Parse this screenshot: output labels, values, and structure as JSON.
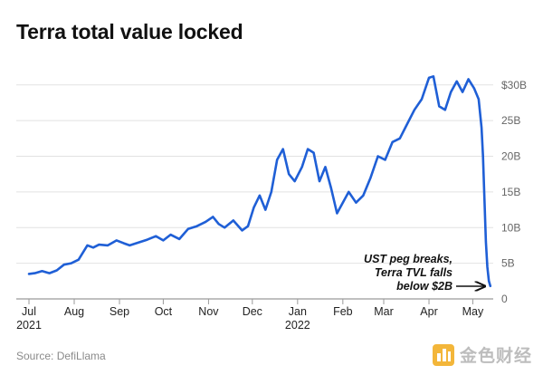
{
  "chart_data": {
    "type": "line",
    "title": "Terra total value locked",
    "source": "Source: DefiLlama",
    "y_unit": "billion USD",
    "ylim": [
      0,
      32
    ],
    "y_ticks": [
      {
        "value": 0,
        "label": "0"
      },
      {
        "value": 5,
        "label": "5B"
      },
      {
        "value": 10,
        "label": "10B"
      },
      {
        "value": 15,
        "label": "15B"
      },
      {
        "value": 20,
        "label": "20B"
      },
      {
        "value": 25,
        "label": "25B"
      },
      {
        "value": 30,
        "label": "$30B"
      }
    ],
    "xlim": [
      "2021-07-01",
      "2022-05-15"
    ],
    "x_ticks": [
      {
        "date": "2021-07-01",
        "label": "Jul",
        "year": "2021"
      },
      {
        "date": "2021-08-01",
        "label": "Aug"
      },
      {
        "date": "2021-09-01",
        "label": "Sep"
      },
      {
        "date": "2021-10-01",
        "label": "Oct"
      },
      {
        "date": "2021-11-01",
        "label": "Nov"
      },
      {
        "date": "2021-12-01",
        "label": "Dec"
      },
      {
        "date": "2022-01-01",
        "label": "Jan",
        "year": "2022"
      },
      {
        "date": "2022-02-01",
        "label": "Feb"
      },
      {
        "date": "2022-03-01",
        "label": "Mar"
      },
      {
        "date": "2022-04-01",
        "label": "Apr"
      },
      {
        "date": "2022-05-01",
        "label": "May"
      }
    ],
    "grid": true,
    "line_color": "#1f5fd6",
    "series": [
      {
        "x": [
          "2021-07-01",
          "2021-07-05",
          "2021-07-10",
          "2021-07-15",
          "2021-07-20",
          "2021-07-25",
          "2021-07-30",
          "2021-08-04",
          "2021-08-10",
          "2021-08-14",
          "2021-08-18",
          "2021-08-24",
          "2021-08-30",
          "2021-09-04",
          "2021-09-08",
          "2021-09-14",
          "2021-09-20",
          "2021-09-26",
          "2021-10-01",
          "2021-10-06",
          "2021-10-12",
          "2021-10-18",
          "2021-10-24",
          "2021-10-30",
          "2021-11-04",
          "2021-11-08",
          "2021-11-12",
          "2021-11-18",
          "2021-11-24",
          "2021-11-28",
          "2021-12-02",
          "2021-12-06",
          "2021-12-10",
          "2021-12-14",
          "2021-12-18",
          "2021-12-22",
          "2021-12-26",
          "2021-12-30",
          "2022-01-04",
          "2022-01-08",
          "2022-01-12",
          "2022-01-16",
          "2022-01-20",
          "2022-01-24",
          "2022-01-28",
          "2022-02-01",
          "2022-02-05",
          "2022-02-10",
          "2022-02-15",
          "2022-02-20",
          "2022-02-25",
          "2022-03-02",
          "2022-03-07",
          "2022-03-12",
          "2022-03-17",
          "2022-03-22",
          "2022-03-27",
          "2022-04-01",
          "2022-04-04",
          "2022-04-08",
          "2022-04-12",
          "2022-04-16",
          "2022-04-20",
          "2022-04-24",
          "2022-04-28",
          "2022-05-02",
          "2022-05-05",
          "2022-05-07",
          "2022-05-08",
          "2022-05-09",
          "2022-05-10",
          "2022-05-11",
          "2022-05-12",
          "2022-05-13"
        ],
        "y": [
          3.5,
          3.6,
          3.9,
          3.6,
          4.0,
          4.8,
          5.0,
          5.5,
          7.5,
          7.2,
          7.6,
          7.5,
          8.2,
          7.8,
          7.5,
          7.9,
          8.3,
          8.8,
          8.2,
          9.0,
          8.4,
          9.8,
          10.2,
          10.8,
          11.5,
          10.5,
          10.0,
          11.0,
          9.6,
          10.2,
          12.8,
          14.5,
          12.5,
          15.0,
          19.5,
          21.0,
          17.5,
          16.5,
          18.5,
          21.0,
          20.5,
          16.5,
          18.5,
          15.5,
          12.0,
          13.5,
          15.0,
          13.5,
          14.5,
          17.0,
          20.0,
          19.5,
          22.0,
          22.5,
          24.5,
          26.5,
          28.0,
          31.0,
          31.2,
          27.0,
          26.5,
          29.0,
          30.5,
          29.0,
          30.8,
          29.5,
          28.0,
          24.0,
          20.0,
          14.0,
          8.0,
          4.5,
          2.5,
          1.8
        ]
      }
    ],
    "annotation": {
      "lines": [
        "UST peg breaks,",
        "Terra TVL falls",
        "below $2B"
      ],
      "arrow_to": {
        "date": "2022-05-13",
        "value": 1.8
      }
    }
  },
  "watermark": {
    "text": "金色财经"
  }
}
